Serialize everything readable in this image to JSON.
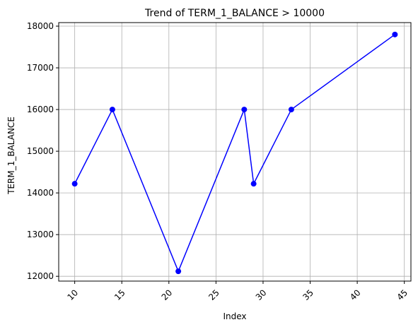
{
  "chart_data": {
    "type": "line",
    "title": "Trend of TERM_1_BALANCE > 10000",
    "xlabel": "Index",
    "ylabel": "TERM_1_BALANCE",
    "xlim": [
      8.3,
      45.7
    ],
    "ylim": [
      11885,
      18085
    ],
    "x_ticks": [
      10,
      15,
      20,
      25,
      30,
      35,
      40,
      45
    ],
    "y_ticks": [
      12000,
      13000,
      14000,
      15000,
      16000,
      17000,
      18000
    ],
    "grid": true,
    "x_tick_rotation": 45,
    "series": [
      {
        "color": "#0000ff",
        "marker": "circle",
        "x": [
          10,
          14,
          21,
          28,
          29,
          33,
          44
        ],
        "y": [
          14220,
          16000,
          12120,
          16000,
          14220,
          16000,
          17800
        ]
      }
    ]
  }
}
